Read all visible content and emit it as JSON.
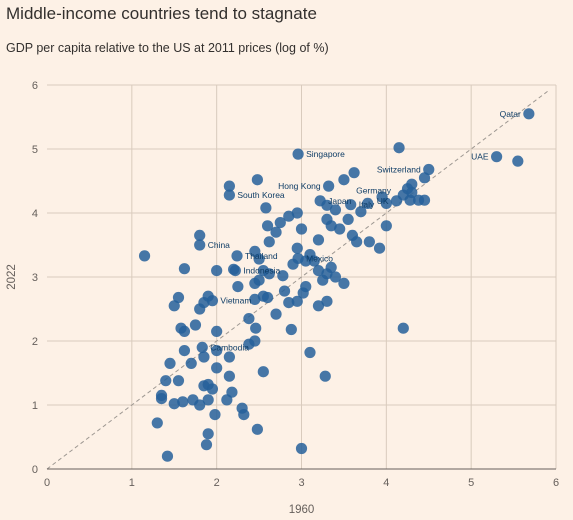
{
  "chart_data": {
    "type": "scatter",
    "title": "Middle-income countries tend to stagnate",
    "subtitle": "GDP per capita relative to the US at 2011 prices (log of %)",
    "xlabel": "1960",
    "ylabel": "2022",
    "xlim": [
      0,
      6
    ],
    "ylim": [
      0,
      6
    ],
    "xticks": [
      "0",
      "1",
      "2",
      "3",
      "4",
      "5",
      "6"
    ],
    "yticks": [
      "0",
      "1",
      "2",
      "3",
      "4",
      "5",
      "6"
    ],
    "grid": true,
    "reference_line": "y = x",
    "colors": {
      "point": "#26609a",
      "label": "#0f3d66",
      "grid": "#d9cbbd",
      "refline": "#9e9892",
      "background": "#fdf1e6"
    },
    "labeled_points": [
      {
        "label": "Qatar",
        "x": 5.68,
        "y": 5.55
      },
      {
        "label": "UAE",
        "x": 5.3,
        "y": 4.88
      },
      {
        "label": "Singapore",
        "x": 2.96,
        "y": 4.92
      },
      {
        "label": "Switzerland",
        "x": 4.5,
        "y": 4.68
      },
      {
        "label": "Hong Kong",
        "x": 3.32,
        "y": 4.42
      },
      {
        "label": "Germany",
        "x": 4.15,
        "y": 4.35
      },
      {
        "label": "South Korea",
        "x": 2.15,
        "y": 4.28
      },
      {
        "label": "Japan",
        "x": 3.22,
        "y": 4.19
      },
      {
        "label": "Italy",
        "x": 3.58,
        "y": 4.13
      },
      {
        "label": "UK",
        "x": 4.12,
        "y": 4.19
      },
      {
        "label": "China",
        "x": 1.8,
        "y": 3.5
      },
      {
        "label": "Thailand",
        "x": 2.24,
        "y": 3.33
      },
      {
        "label": "Mexico",
        "x": 2.96,
        "y": 3.29
      },
      {
        "label": "Indonesia",
        "x": 2.22,
        "y": 3.1
      },
      {
        "label": "Vietnam",
        "x": 1.95,
        "y": 2.63
      },
      {
        "label": "Cambodia",
        "x": 1.83,
        "y": 1.9
      }
    ],
    "points": [
      [
        5.68,
        5.55
      ],
      [
        5.3,
        4.88
      ],
      [
        5.55,
        4.81
      ],
      [
        2.96,
        4.92
      ],
      [
        4.15,
        5.02
      ],
      [
        4.5,
        4.68
      ],
      [
        4.45,
        4.55
      ],
      [
        4.3,
        4.45
      ],
      [
        4.25,
        4.38
      ],
      [
        4.3,
        4.32
      ],
      [
        4.2,
        4.28
      ],
      [
        4.38,
        4.2
      ],
      [
        4.28,
        4.2
      ],
      [
        4.45,
        4.2
      ],
      [
        4.12,
        4.19
      ],
      [
        3.95,
        4.25
      ],
      [
        4.0,
        4.15
      ],
      [
        3.32,
        4.42
      ],
      [
        3.62,
        4.63
      ],
      [
        3.5,
        4.52
      ],
      [
        3.22,
        4.19
      ],
      [
        3.3,
        4.12
      ],
      [
        3.4,
        4.05
      ],
      [
        3.58,
        4.13
      ],
      [
        3.78,
        4.15
      ],
      [
        3.7,
        4.02
      ],
      [
        3.55,
        3.9
      ],
      [
        3.3,
        3.9
      ],
      [
        3.35,
        3.8
      ],
      [
        3.45,
        3.75
      ],
      [
        3.6,
        3.65
      ],
      [
        3.65,
        3.55
      ],
      [
        3.8,
        3.55
      ],
      [
        3.92,
        3.45
      ],
      [
        4.0,
        3.8
      ],
      [
        3.2,
        3.58
      ],
      [
        3.0,
        3.75
      ],
      [
        2.95,
        4.0
      ],
      [
        2.85,
        3.95
      ],
      [
        2.75,
        3.85
      ],
      [
        2.7,
        3.7
      ],
      [
        2.62,
        3.55
      ],
      [
        2.6,
        3.8
      ],
      [
        2.58,
        4.08
      ],
      [
        2.48,
        4.52
      ],
      [
        2.15,
        4.42
      ],
      [
        2.15,
        4.28
      ],
      [
        1.8,
        3.65
      ],
      [
        1.8,
        3.5
      ],
      [
        1.15,
        3.33
      ],
      [
        1.62,
        3.13
      ],
      [
        2.0,
        3.1
      ],
      [
        2.24,
        3.33
      ],
      [
        2.2,
        3.12
      ],
      [
        2.22,
        3.1
      ],
      [
        2.45,
        3.4
      ],
      [
        2.5,
        3.28
      ],
      [
        2.55,
        3.1
      ],
      [
        2.62,
        3.05
      ],
      [
        2.78,
        3.02
      ],
      [
        2.9,
        3.2
      ],
      [
        2.96,
        3.29
      ],
      [
        3.05,
        3.25
      ],
      [
        3.1,
        3.35
      ],
      [
        3.15,
        3.25
      ],
      [
        3.2,
        3.1
      ],
      [
        3.3,
        3.05
      ],
      [
        3.35,
        3.15
      ],
      [
        3.25,
        2.95
      ],
      [
        3.4,
        3.0
      ],
      [
        3.5,
        2.9
      ],
      [
        2.95,
        3.45
      ],
      [
        2.25,
        2.85
      ],
      [
        2.45,
        2.9
      ],
      [
        2.5,
        2.95
      ],
      [
        2.55,
        2.7
      ],
      [
        2.45,
        2.65
      ],
      [
        2.6,
        2.68
      ],
      [
        2.7,
        2.42
      ],
      [
        2.8,
        2.78
      ],
      [
        2.85,
        2.6
      ],
      [
        2.95,
        2.62
      ],
      [
        3.02,
        2.75
      ],
      [
        3.05,
        2.85
      ],
      [
        3.2,
        2.55
      ],
      [
        3.3,
        2.62
      ],
      [
        2.38,
        2.35
      ],
      [
        2.46,
        2.2
      ],
      [
        2.88,
        2.18
      ],
      [
        1.95,
        2.63
      ],
      [
        1.9,
        2.7
      ],
      [
        1.85,
        2.6
      ],
      [
        1.8,
        2.5
      ],
      [
        1.55,
        2.68
      ],
      [
        1.5,
        2.55
      ],
      [
        1.58,
        2.2
      ],
      [
        1.62,
        2.15
      ],
      [
        1.75,
        2.25
      ],
      [
        2.0,
        2.15
      ],
      [
        1.83,
        1.9
      ],
      [
        1.85,
        1.75
      ],
      [
        2.0,
        1.85
      ],
      [
        2.15,
        1.75
      ],
      [
        2.45,
        2.0
      ],
      [
        2.38,
        1.95
      ],
      [
        2.55,
        1.52
      ],
      [
        1.62,
        1.85
      ],
      [
        1.7,
        1.65
      ],
      [
        1.45,
        1.65
      ],
      [
        1.4,
        1.38
      ],
      [
        1.35,
        1.15
      ],
      [
        1.35,
        1.1
      ],
      [
        1.55,
        1.38
      ],
      [
        1.85,
        1.3
      ],
      [
        1.9,
        1.32
      ],
      [
        1.95,
        1.25
      ],
      [
        2.0,
        1.58
      ],
      [
        2.15,
        1.45
      ],
      [
        2.18,
        1.2
      ],
      [
        2.12,
        1.08
      ],
      [
        1.9,
        1.08
      ],
      [
        1.8,
        1.0
      ],
      [
        1.72,
        1.08
      ],
      [
        1.6,
        1.05
      ],
      [
        1.5,
        1.02
      ],
      [
        1.98,
        0.85
      ],
      [
        2.3,
        0.95
      ],
      [
        2.32,
        0.85
      ],
      [
        2.48,
        0.62
      ],
      [
        1.9,
        0.55
      ],
      [
        1.88,
        0.38
      ],
      [
        1.3,
        0.72
      ],
      [
        1.42,
        0.2
      ],
      [
        3.1,
        1.82
      ],
      [
        3.28,
        1.45
      ],
      [
        3.0,
        0.32
      ],
      [
        4.2,
        2.2
      ]
    ]
  }
}
